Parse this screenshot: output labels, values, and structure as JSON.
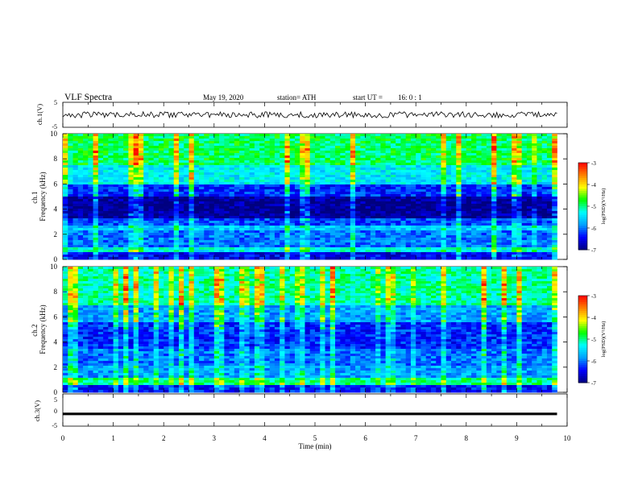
{
  "header": {
    "title": "VLF  Spectra",
    "date": "May 19, 2020",
    "station": "station= ATH",
    "start_label": "start  UT  =",
    "start_value": "16: 0  : 1"
  },
  "colors": {
    "colormap": [
      "#000080",
      "#0000ff",
      "#00a0ff",
      "#00ffff",
      "#00ff00",
      "#ffff00",
      "#ff8000",
      "#ff0000",
      "#ffffff"
    ],
    "trace": "#000000"
  },
  "chart_data": [
    {
      "type": "line",
      "name": "ch1-waveform",
      "ylabel": "ch.1(V)",
      "ylim": [
        -5,
        5
      ],
      "yticks": [
        "5",
        "-5"
      ],
      "xlim": [
        0,
        10
      ],
      "mean": 0,
      "amplitude": 1.2,
      "notes": "noisy waveform around 0 V"
    },
    {
      "type": "heatmap",
      "name": "ch1-spectrogram",
      "ylabel": "ch.1\nFrequency (kHz)",
      "ylabel_lines": [
        "ch.1",
        "Frequency (kHz)"
      ],
      "ylim": [
        0,
        10
      ],
      "yticks": [
        "0",
        "2",
        "4",
        "6",
        "8",
        "10"
      ],
      "xlim": [
        0,
        9.8
      ],
      "colorbar": {
        "label": "log(PSD)(V²/Hz)",
        "range": [
          -7,
          -3
        ],
        "ticks": [
          "-3",
          "-4",
          "-5",
          "-6",
          "-7"
        ]
      },
      "bands": [
        {
          "f0": 0,
          "f1": 0.6,
          "level": -6.5
        },
        {
          "f0": 0.6,
          "f1": 1.0,
          "level": -5.3
        },
        {
          "f0": 1.0,
          "f1": 2.3,
          "level": -6.0
        },
        {
          "f0": 2.3,
          "f1": 2.7,
          "level": -5.6
        },
        {
          "f0": 2.7,
          "f1": 3.3,
          "level": -6.2
        },
        {
          "f0": 3.3,
          "f1": 5.0,
          "level": -6.9
        },
        {
          "f0": 5.0,
          "f1": 6.0,
          "level": -6.3
        },
        {
          "f0": 6.0,
          "f1": 7.5,
          "level": -5.4
        },
        {
          "f0": 7.5,
          "f1": 10.0,
          "level": -4.9
        }
      ]
    },
    {
      "type": "heatmap",
      "name": "ch2-spectrogram",
      "ylabel": "ch.2\nFrequency (kHz)",
      "ylabel_lines": [
        "ch.2",
        "Frequency (kHz)"
      ],
      "ylim": [
        0,
        10
      ],
      "yticks": [
        "0",
        "2",
        "4",
        "6",
        "8",
        "10"
      ],
      "xlim": [
        0,
        9.8
      ],
      "colorbar": {
        "label": "log(PSD)(V²/Hz)",
        "range": [
          -7,
          -3
        ],
        "ticks": [
          "-3",
          "-4",
          "-5",
          "-6",
          "-7"
        ]
      },
      "bands": [
        {
          "f0": 0,
          "f1": 0.5,
          "level": -6.4
        },
        {
          "f0": 0.5,
          "f1": 1.2,
          "level": -5.0
        },
        {
          "f0": 1.2,
          "f1": 2.2,
          "level": -5.8
        },
        {
          "f0": 2.2,
          "f1": 3.5,
          "level": -6.0
        },
        {
          "f0": 3.5,
          "f1": 5.5,
          "level": -6.3
        },
        {
          "f0": 5.5,
          "f1": 7.0,
          "level": -5.8
        },
        {
          "f0": 7.0,
          "f1": 10.0,
          "level": -5.1
        }
      ]
    },
    {
      "type": "line",
      "name": "ch3-waveform",
      "ylabel": "ch.3(V)",
      "ylim": [
        -5,
        5
      ],
      "yticks": [
        "5",
        "0",
        "-5"
      ],
      "xlim": [
        0,
        10
      ],
      "mean": -1.2,
      "amplitude": 0.15,
      "xlabel": "Time  (min)",
      "xticks": [
        "0",
        "1",
        "2",
        "3",
        "4",
        "5",
        "6",
        "7",
        "8",
        "9",
        "10"
      ]
    }
  ]
}
